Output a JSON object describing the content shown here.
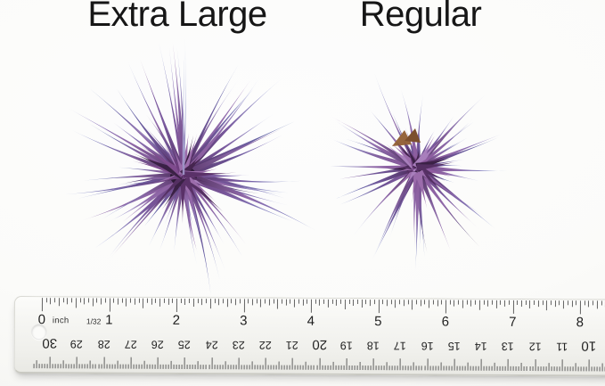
{
  "labels": {
    "extra_large": "Extra Large",
    "regular": "Regular"
  },
  "ruler": {
    "unit_label": "inch",
    "graduation_label": "1/32",
    "inch_labels": [
      "0",
      "1",
      "2",
      "3",
      "4",
      "5",
      "6",
      "7",
      "8"
    ],
    "cm_labels": [
      "30",
      "29",
      "28",
      "27",
      "26",
      "25",
      "24",
      "23",
      "22",
      "21",
      "20",
      "19",
      "18",
      "17",
      "16",
      "15",
      "14",
      "13",
      "12",
      "11",
      "10"
    ]
  },
  "colors": {
    "label_text": "#161616",
    "tick": "#424242",
    "leaf_base_purples": [
      "#6a3d7c",
      "#7a4a8c",
      "#583468",
      "#8a589a",
      "#4a2a58"
    ],
    "leaf_mid_purples": [
      "#7a5a9e",
      "#6d5496",
      "#84629f",
      "#8f68a8"
    ],
    "leaf_tip_blues": [
      "#7288cc",
      "#8398d4",
      "#93a6dc",
      "#6b7cc0",
      "#a3b2e2",
      "#5c6eb4",
      "#8a82cc",
      "#5f7ab8"
    ],
    "leaf_tip_light": "#bcc6ea",
    "leaf_tip_purples": [
      "#9a76b6",
      "#8a62a8"
    ],
    "rosette_purples": [
      "#3a2145",
      "#5a3168",
      "#6e3f7e",
      "#7f4b8e",
      "#8f5ca0",
      "#9b6cab",
      "#542f62",
      "#45254f",
      "#a87fbc"
    ],
    "core_dark": "#2c1a36",
    "dark_indigo": "#3c3660",
    "stem_browns": [
      "#96653c",
      "#7c4f2e"
    ]
  }
}
